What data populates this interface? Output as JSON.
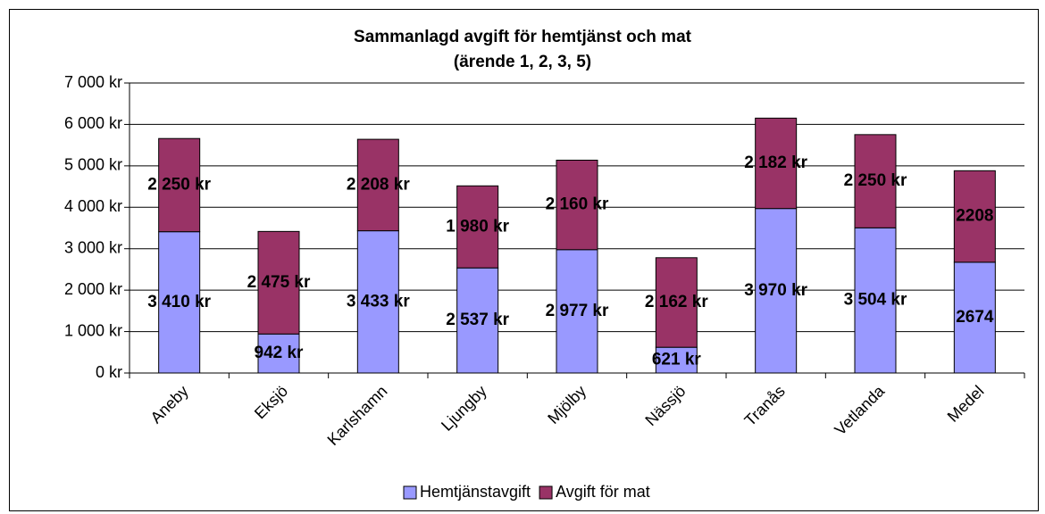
{
  "chart_data": {
    "type": "stacked_bar",
    "title": "Sammanlagd avgift för hemtjänst och mat",
    "subtitle": "(ärende 1, 2, 3, 5)",
    "categories": [
      "Aneby",
      "Eksjö",
      "Karlshamn",
      "Ljungby",
      "Mjölby",
      "Nässjö",
      "Tranås",
      "Vetlanda",
      "Medel"
    ],
    "series": [
      {
        "name": "Hemtjänstavgift",
        "color": "#9999ff",
        "values": [
          3410,
          942,
          3433,
          2537,
          2977,
          621,
          3970,
          3504,
          2674
        ],
        "value_labels": [
          "3 410 kr",
          "942 kr",
          "3 433 kr",
          "2 537 kr",
          "2 977 kr",
          "621 kr",
          "3 970 kr",
          "3 504 kr",
          "2674"
        ]
      },
      {
        "name": "Avgift för mat",
        "color": "#993366",
        "values": [
          2250,
          2475,
          2208,
          1980,
          2160,
          2162,
          2182,
          2250,
          2208
        ],
        "value_labels": [
          "2 250 kr",
          "2 475 kr",
          "2 208 kr",
          "1 980 kr",
          "2 160 kr",
          "2 162 kr",
          "2 182 kr",
          "2 250 kr",
          "2208"
        ]
      }
    ],
    "ylim": [
      0,
      7000
    ],
    "yticks": [
      {
        "value": 0,
        "label": "0 kr"
      },
      {
        "value": 1000,
        "label": "1 000 kr"
      },
      {
        "value": 2000,
        "label": "2 000 kr"
      },
      {
        "value": 3000,
        "label": "3 000 kr"
      },
      {
        "value": 4000,
        "label": "4 000 kr"
      },
      {
        "value": 5000,
        "label": "5 000 kr"
      },
      {
        "value": 6000,
        "label": "6 000 kr"
      },
      {
        "value": 7000,
        "label": "7 000 kr"
      }
    ],
    "grid": true,
    "legend": "bottom"
  }
}
